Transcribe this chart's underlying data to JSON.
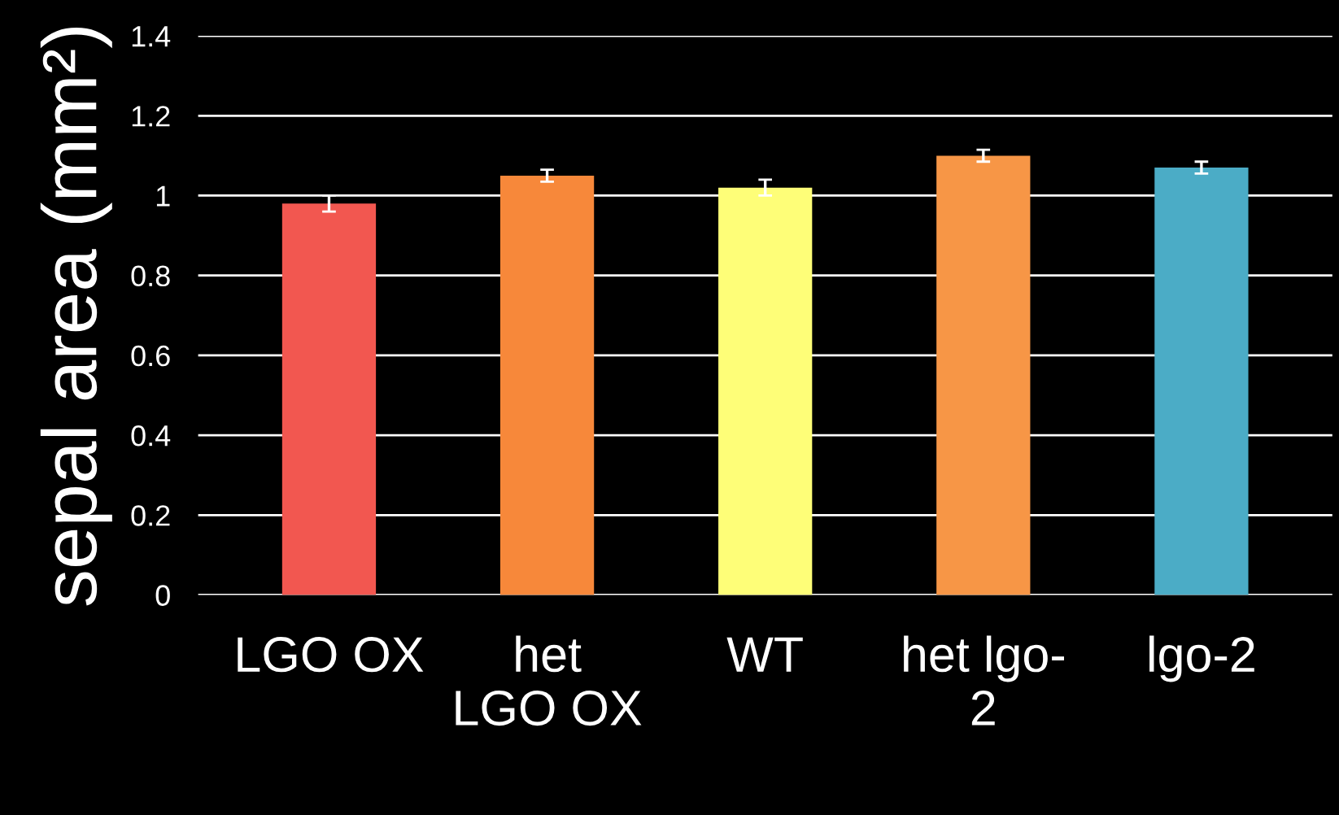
{
  "chart_data": {
    "type": "bar",
    "ylabel": "sepal area (mm²)",
    "categories": [
      "LGO OX",
      "het\nLGO OX",
      "WT",
      "het lgo-\n2",
      "lgo-2"
    ],
    "values": [
      0.98,
      1.05,
      1.02,
      1.1,
      1.07
    ],
    "errors": [
      0.02,
      0.015,
      0.02,
      0.015,
      0.015
    ],
    "colors": [
      "#f25750",
      "#f7883a",
      "#fefe78",
      "#f79646",
      "#4bacc6"
    ],
    "ylim": [
      0,
      1.4
    ],
    "yticks": [
      0,
      0.2,
      0.4,
      0.6,
      0.8,
      1,
      1.2,
      1.4
    ],
    "grid": "y"
  }
}
